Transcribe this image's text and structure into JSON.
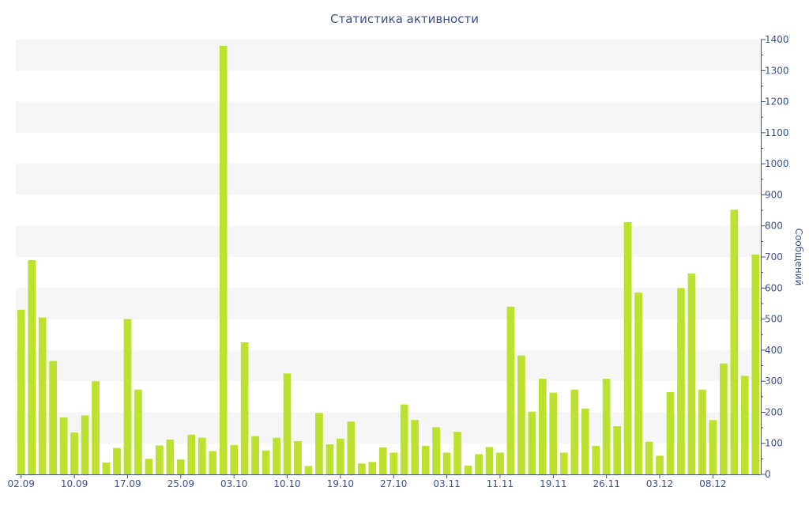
{
  "chart_data": {
    "type": "bar",
    "title": "Статистика активности",
    "xlabel": "",
    "ylabel": "Сообщений",
    "ylim": [
      0,
      1400
    ],
    "y_axis_side": "right",
    "y_ticks": [
      0,
      100,
      200,
      300,
      400,
      500,
      600,
      700,
      800,
      900,
      1000,
      1100,
      1200,
      1300,
      1400
    ],
    "x_tick_labels": [
      "02.09",
      "10.09",
      "17.09",
      "25.09",
      "03.10",
      "10.10",
      "19.10",
      "27.10",
      "03.11",
      "11.11",
      "19.11",
      "26.11",
      "03.12",
      "08.12"
    ],
    "x_tick_bar_index": [
      0,
      5,
      10,
      15,
      20,
      25,
      30,
      35,
      40,
      45,
      50,
      55,
      60,
      65
    ],
    "grid": "alternating horizontal bands",
    "colors": {
      "bar": "#bde12f",
      "axis": "#3d4f8f",
      "band": "#f6f6f6",
      "title": "#3d4f8f"
    },
    "values": [
      530,
      690,
      505,
      365,
      183,
      135,
      190,
      300,
      38,
      85,
      500,
      273,
      50,
      93,
      112,
      48,
      128,
      118,
      75,
      1380,
      95,
      425,
      123,
      77,
      118,
      325,
      107,
      27,
      198,
      97,
      115,
      170,
      35,
      40,
      87,
      70,
      225,
      175,
      92,
      152,
      70,
      137,
      28,
      65,
      88,
      70,
      540,
      383,
      202,
      308,
      263,
      70,
      273,
      212,
      92,
      308,
      155,
      812,
      585,
      105,
      60,
      265,
      600,
      647,
      273,
      175,
      357,
      852,
      317,
      708
    ]
  }
}
